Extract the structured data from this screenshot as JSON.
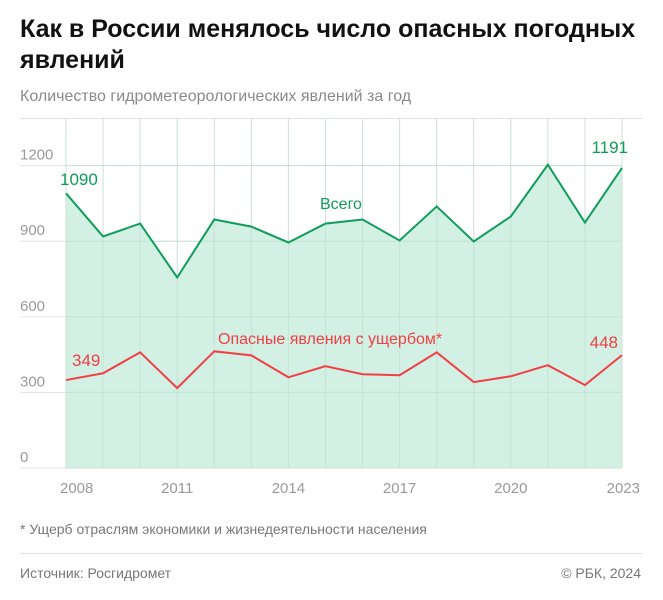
{
  "title": "Как в России менялось число опасных погодных явлений",
  "subtitle": "Количество гидрометеорологических явлений за год",
  "footnote": "* Ущерб отраслям экономики и жизнедеятельности населения",
  "source": "Источник: Росгидромет",
  "copyright": "© РБК, 2024",
  "chart_data": {
    "type": "area",
    "title": "Как в России менялось число опасных погодных явлений",
    "subtitle": "Количество гидрометеорологических явлений за год",
    "x": [
      2008,
      2009,
      2010,
      2011,
      2012,
      2013,
      2014,
      2015,
      2016,
      2017,
      2018,
      2019,
      2020,
      2021,
      2022,
      2023
    ],
    "x_ticks": [
      "2008",
      "2011",
      "2014",
      "2017",
      "2020",
      "2023"
    ],
    "y_ticks": [
      "0",
      "300",
      "600",
      "900",
      "1200"
    ],
    "ylim": [
      0,
      1385
    ],
    "grid": true,
    "series": [
      {
        "name": "Всего",
        "type": "area",
        "color": "#0f9d5c",
        "fill": "#cdeee0",
        "values": [
          1090,
          919,
          970,
          756,
          986,
          958,
          895,
          970,
          986,
          903,
          1038,
          899,
          998,
          1204,
          974,
          1191
        ],
        "labels": {
          "first": "1090",
          "last": "1191"
        }
      },
      {
        "name": "Опасные явления с ущербом*",
        "type": "line",
        "color": "#f04046",
        "values": [
          349,
          376,
          459,
          317,
          463,
          447,
          360,
          404,
          372,
          368,
          459,
          341,
          364,
          408,
          329,
          448
        ],
        "labels": {
          "first": "349",
          "last": "448"
        }
      }
    ]
  }
}
